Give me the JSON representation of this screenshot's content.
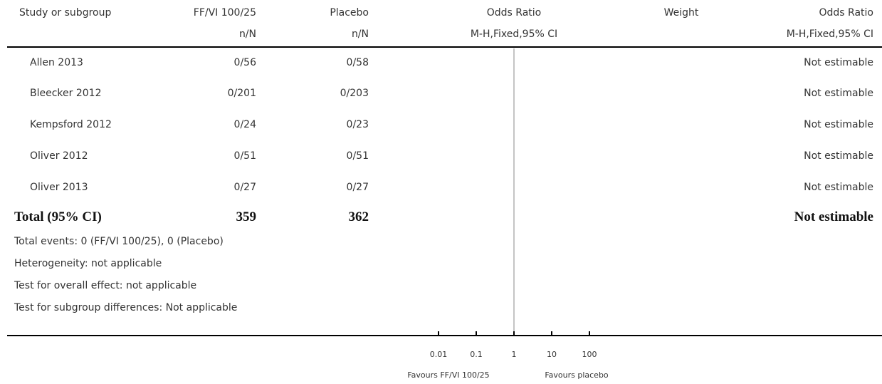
{
  "columns": {
    "study": "Study or subgroup",
    "group1": "FF/VI 100/25",
    "group1_sub": "n/N",
    "group2": "Placebo",
    "group2_sub": "n/N",
    "or_plot": "Odds Ratio",
    "or_plot_sub": "M-H,Fixed,95% CI",
    "weight": "Weight",
    "or_value": "Odds Ratio",
    "or_value_sub": "M-H,Fixed,95% CI"
  },
  "rows": [
    {
      "study": "Allen 2013",
      "g1": "0/56",
      "g2": "0/58",
      "or": "Not estimable"
    },
    {
      "study": "Bleecker 2012",
      "g1": "0/201",
      "g2": "0/203",
      "or": "Not estimable"
    },
    {
      "study": "Kempsford 2012",
      "g1": "0/24",
      "g2": "0/23",
      "or": "Not estimable"
    },
    {
      "study": "Oliver 2012",
      "g1": "0/51",
      "g2": "0/51",
      "or": "Not estimable"
    },
    {
      "study": "Oliver 2013",
      "g1": "0/27",
      "g2": "0/27",
      "or": "Not estimable"
    }
  ],
  "total": {
    "label": "Total (95% CI)",
    "g1": "359",
    "g2": "362",
    "or": "Not estimable"
  },
  "footnotes": [
    "Total events: 0 (FF/VI 100/25), 0 (Placebo)",
    "Heterogeneity: not applicable",
    "Test for overall effect: not applicable",
    "Test for subgroup differences: Not applicable"
  ],
  "chart_data": {
    "type": "forest",
    "x_scale": "log",
    "xlim": [
      0.01,
      100
    ],
    "null_line": 1,
    "ticks": [
      0.01,
      0.1,
      1,
      10,
      100
    ],
    "tick_labels": [
      "0.01",
      "0.1",
      "1",
      "10",
      "100"
    ],
    "favours_left": "Favours FF/VI 100/25",
    "favours_right": "Favours placebo",
    "estimates": []
  }
}
